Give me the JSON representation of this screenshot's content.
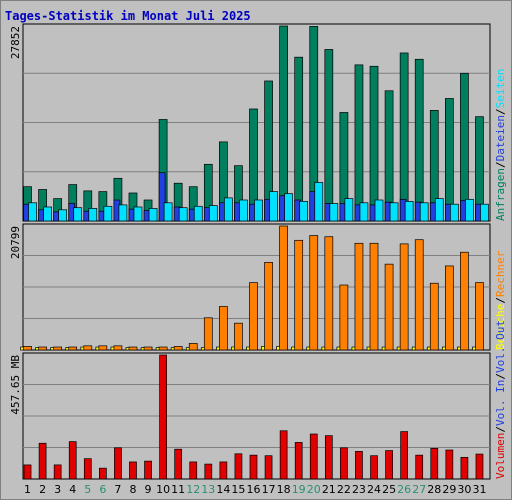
{
  "title": "Tages-Statistik im Monat Juli 2025",
  "colors": {
    "background": "#C0C0C0",
    "title": "#0000C0",
    "anfragen": "#007F5F",
    "dateien": "#2040E0",
    "seiten": "#00E0FF",
    "besuche": "#FFFF00",
    "rechner": "#FF8000",
    "volume": "#E00000",
    "weekend_label": "#2A8F73",
    "weekday_label": "#000000"
  },
  "chart_data": [
    {
      "type": "bar",
      "panel": "top",
      "max_label": "27852",
      "ylim": [
        0,
        27852
      ],
      "categories": [
        "1",
        "2",
        "3",
        "4",
        "5",
        "6",
        "7",
        "8",
        "9",
        "10",
        "11",
        "12",
        "13",
        "14",
        "15",
        "16",
        "17",
        "18",
        "19",
        "20",
        "21",
        "22",
        "23",
        "24",
        "25",
        "26",
        "27",
        "28",
        "29",
        "30",
        "31"
      ],
      "legend": [
        {
          "text": "Anfragen",
          "color": "#007F5F"
        },
        {
          "text": "/",
          "color": "#000000"
        },
        {
          "text": "Dateien",
          "color": "#2040E0"
        },
        {
          "text": "/",
          "color": "#000000"
        },
        {
          "text": "Seiten",
          "color": "#00E0FF"
        }
      ],
      "series": [
        {
          "name": "Anfragen",
          "color": "#007F5F",
          "values": [
            4900,
            4500,
            3200,
            5200,
            4300,
            4200,
            6100,
            4000,
            3000,
            14500,
            5400,
            4900,
            8100,
            11300,
            7900,
            16000,
            20000,
            27852,
            23400,
            27800,
            24500,
            15500,
            22300,
            22100,
            18600,
            24000,
            23100,
            15800,
            17500,
            21100,
            14900
          ]
        },
        {
          "name": "Dateien",
          "color": "#2040E0",
          "values": [
            2400,
            1600,
            1300,
            2500,
            1400,
            1400,
            3000,
            1700,
            1500,
            6900,
            2000,
            1700,
            1900,
            2600,
            2600,
            2400,
            3100,
            3600,
            3000,
            4200,
            2500,
            2500,
            2300,
            2300,
            2700,
            3100,
            2700,
            2600,
            2400,
            2900,
            2400
          ]
        },
        {
          "name": "Seiten",
          "color": "#00E0FF",
          "values": [
            2600,
            2000,
            1600,
            1900,
            1800,
            2100,
            2300,
            2000,
            1800,
            2600,
            1900,
            2100,
            2200,
            3300,
            3000,
            3000,
            4200,
            3900,
            2800,
            5500,
            2500,
            3200,
            2600,
            3000,
            2600,
            2800,
            2600,
            3200,
            2400,
            3100,
            2400
          ]
        }
      ],
      "x_label_colors": [
        "#000000",
        "#000000",
        "#000000",
        "#000000",
        "#2A8F73",
        "#2A8F73",
        "#000000",
        "#000000",
        "#000000",
        "#000000",
        "#000000",
        "#2A8F73",
        "#2A8F73",
        "#000000",
        "#000000",
        "#000000",
        "#000000",
        "#000000",
        "#2A8F73",
        "#2A8F73",
        "#000000",
        "#000000",
        "#000000",
        "#000000",
        "#000000",
        "#2A8F73",
        "#2A8F73",
        "#000000",
        "#000000",
        "#000000",
        "#000000"
      ]
    },
    {
      "type": "bar",
      "panel": "middle",
      "max_label": "20799",
      "ylim": [
        0,
        20799
      ],
      "legend": [
        {
          "text": "Besuche",
          "color": "#FFFF00"
        },
        {
          "text": "/",
          "color": "#000000"
        },
        {
          "text": "Rechner",
          "color": "#FF8000"
        }
      ],
      "series": [
        {
          "name": "Besuche",
          "color": "#FFFF00",
          "values": [
            500,
            400,
            400,
            400,
            500,
            500,
            500,
            400,
            400,
            400,
            400,
            400,
            400,
            500,
            500,
            500,
            600,
            600,
            500,
            500,
            500,
            500,
            500,
            500,
            500,
            500,
            500,
            500,
            500,
            500,
            500
          ]
        },
        {
          "name": "Rechner",
          "color": "#FF8000",
          "values": [
            600,
            500,
            500,
            500,
            700,
            700,
            700,
            500,
            500,
            500,
            600,
            1100,
            5400,
            7300,
            4500,
            11300,
            14700,
            20799,
            18400,
            19200,
            19000,
            10900,
            17900,
            17900,
            14400,
            17800,
            18500,
            11200,
            14100,
            16400,
            11300
          ]
        }
      ]
    },
    {
      "type": "bar",
      "panel": "bottom",
      "max_label": "457.65 MB",
      "ylim": [
        0,
        457.65
      ],
      "legend": [
        {
          "text": "Volumen",
          "color": "#E00000"
        },
        {
          "text": "/",
          "color": "#000000"
        },
        {
          "text": "Vol. In",
          "color": "#2040E0"
        },
        {
          "text": "/",
          "color": "#000000"
        },
        {
          "text": "Vol. Out",
          "color": "#2040E0"
        }
      ],
      "series": [
        {
          "name": "Volumen",
          "color": "#E00000",
          "values": [
            52,
            132,
            52,
            138,
            75,
            40,
            115,
            63,
            66,
            457.65,
            110,
            63,
            55,
            63,
            93,
            88,
            86,
            178,
            135,
            166,
            160,
            115,
            102,
            86,
            105,
            175,
            88,
            113,
            107,
            80,
            92
          ]
        }
      ]
    }
  ]
}
